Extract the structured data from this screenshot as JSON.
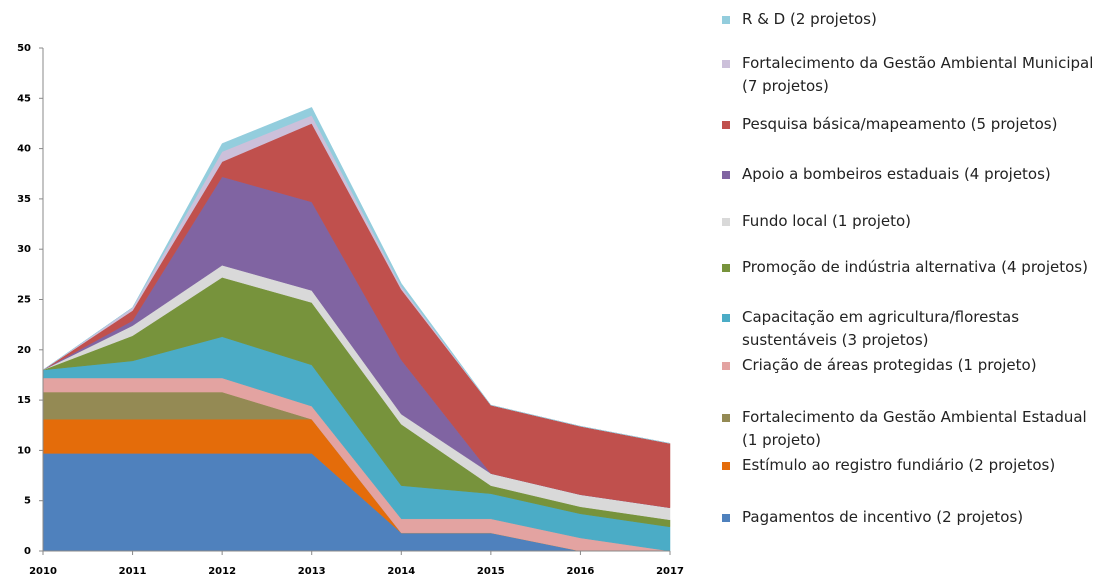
{
  "chart_data": {
    "type": "stacked-area",
    "categories": [
      "2010",
      "2011",
      "2012",
      "2013",
      "2014",
      "2015",
      "2016",
      "2017"
    ],
    "ylim": [
      0,
      50
    ],
    "yticks": [
      0,
      5,
      10,
      15,
      20,
      25,
      30,
      35,
      40,
      45,
      50
    ],
    "series": [
      {
        "name": "Pagamentos de incentivo (2 projetos)",
        "color": "#4f81bd",
        "values": [
          9.7,
          9.7,
          9.7,
          9.7,
          1.8,
          1.8,
          0,
          0
        ]
      },
      {
        "name": "Estímulo ao registro fundiário (2 projetos)",
        "color": "#e46c0a",
        "values": [
          3.4,
          3.4,
          3.4,
          3.4,
          0,
          0,
          0,
          0
        ]
      },
      {
        "name": "Fortalecimento da Gestão Ambiental Estadual (1 projeto)",
        "color": "#948a54",
        "values": [
          2.7,
          2.7,
          2.7,
          0,
          0,
          0,
          0,
          0
        ]
      },
      {
        "name": "Criação de áreas protegidas (1 projeto)",
        "color": "#e3a3a1",
        "values": [
          1.4,
          1.4,
          1.4,
          1.3,
          1.4,
          1.4,
          1.3,
          0
        ]
      },
      {
        "name": "Capacitação em agricultura/florestas sustentáveis (3 projetos)",
        "color": "#4bacc6",
        "values": [
          0.8,
          1.7,
          4.1,
          4.1,
          3.3,
          2.5,
          2.4,
          2.4
        ]
      },
      {
        "name": "Promoção de indústria alternativa (4 projetos)",
        "color": "#77933c",
        "values": [
          0,
          2.5,
          5.9,
          6.2,
          6.1,
          0.8,
          0.7,
          0.7
        ]
      },
      {
        "name": "Fundo local (1 projeto)",
        "color": "#d9d9d9",
        "values": [
          0,
          1,
          1.2,
          1.2,
          1,
          1.2,
          1.2,
          1.2
        ]
      },
      {
        "name": "Apoio a bombeiros estaduais (4 projetos)",
        "color": "#8064a2",
        "values": [
          0,
          0.5,
          8.8,
          8.8,
          5.4,
          0,
          0,
          0
        ]
      },
      {
        "name": "Pesquisa básica/mapeamento (5 projetos)",
        "color": "#c0504d",
        "values": [
          0,
          1,
          1.5,
          7.8,
          7,
          6.8,
          6.8,
          6.4
        ]
      },
      {
        "name": "Fortalecimento da Gestão Ambiental Municipal (7 projetos)",
        "color": "#ccc0da",
        "values": [
          0,
          0.3,
          1,
          0.8,
          0.3,
          0,
          0,
          0
        ]
      },
      {
        "name": "R & D (2 projetos)",
        "color": "#93cddd",
        "values": [
          0,
          0,
          0.8,
          0.8,
          0.3,
          0,
          0,
          0
        ]
      }
    ]
  }
}
